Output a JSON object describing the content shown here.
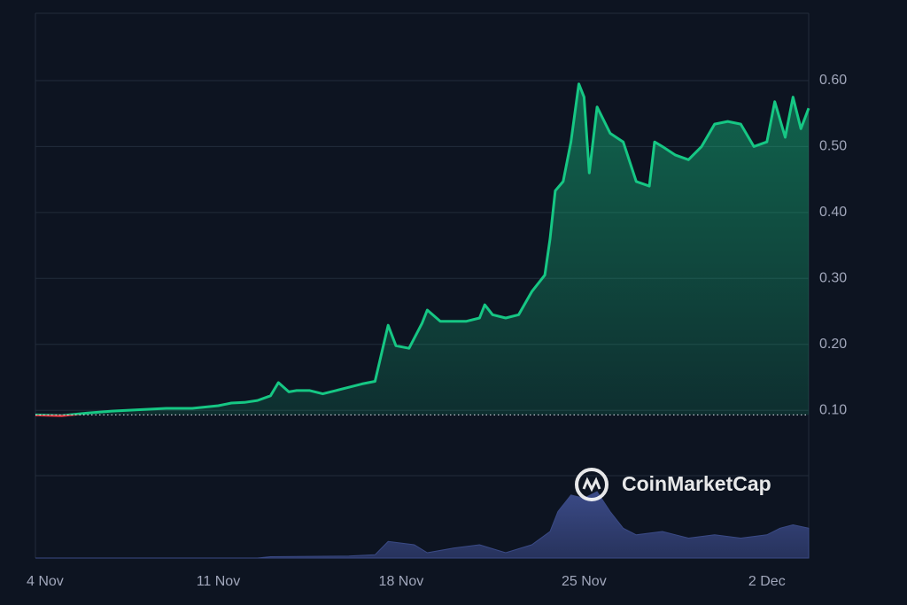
{
  "chart_data": {
    "type": "line",
    "watermark": "CoinMarketCap",
    "xlim": [
      0,
      29.6
    ],
    "xticks": [
      {
        "value": 0,
        "label": "4 Nov"
      },
      {
        "value": 7,
        "label": "11 Nov"
      },
      {
        "value": 14,
        "label": "18 Nov"
      },
      {
        "value": 21,
        "label": "25 Nov"
      },
      {
        "value": 28,
        "label": "2 Dec"
      }
    ],
    "ylim": [
      -0.124,
      0.702
    ],
    "yticks": [
      {
        "value": 0.1,
        "label": "0.10"
      },
      {
        "value": 0.2,
        "label": "0.20"
      },
      {
        "value": 0.3,
        "label": "0.30"
      },
      {
        "value": 0.4,
        "label": "0.40"
      },
      {
        "value": 0.5,
        "label": "0.50"
      },
      {
        "value": 0.6,
        "label": "0.60"
      }
    ],
    "y2lim": [
      0,
      100
    ],
    "grid": true,
    "baseline": 0.093,
    "below_color": "#ea3943",
    "series": [
      {
        "color": "#16c784",
        "x": [
          0,
          1,
          2,
          3,
          4,
          5,
          6,
          7,
          7.5,
          8,
          8.5,
          9,
          9.3,
          9.7,
          10,
          10.5,
          11,
          11.5,
          12,
          12.5,
          13,
          13.5,
          13.8,
          14.3,
          14.8,
          15,
          15.5,
          16,
          16.5,
          17,
          17.2,
          17.5,
          18,
          18.5,
          19,
          19.5,
          19.7,
          19.9,
          20.2,
          20.5,
          20.8,
          21,
          21.2,
          21.5,
          22,
          22.5,
          23,
          23.5,
          23.7,
          24,
          24.5,
          25,
          25.5,
          26,
          26.5,
          27,
          27.5,
          28,
          28.3,
          28.7,
          29,
          29.3,
          29.6
        ],
        "values": [
          0.093,
          0.092,
          0.096,
          0.099,
          0.101,
          0.103,
          0.103,
          0.107,
          0.111,
          0.112,
          0.115,
          0.122,
          0.142,
          0.128,
          0.13,
          0.13,
          0.125,
          0.13,
          0.135,
          0.14,
          0.144,
          0.229,
          0.198,
          0.194,
          0.232,
          0.252,
          0.235,
          0.235,
          0.235,
          0.24,
          0.26,
          0.245,
          0.24,
          0.245,
          0.28,
          0.305,
          0.36,
          0.433,
          0.447,
          0.507,
          0.595,
          0.575,
          0.46,
          0.56,
          0.52,
          0.507,
          0.447,
          0.44,
          0.507,
          0.5,
          0.487,
          0.48,
          0.5,
          0.534,
          0.538,
          0.534,
          0.5,
          0.507,
          0.568,
          0.514,
          0.575,
          0.527,
          0.558
        ]
      },
      {
        "color": "#3a4a85",
        "axis": "y2",
        "x": [
          0,
          8.5,
          9,
          12,
          13,
          13.5,
          14.5,
          15,
          16,
          17,
          18,
          19,
          19.7,
          20,
          20.5,
          21,
          21.5,
          22,
          22.5,
          23,
          24,
          25,
          26,
          27,
          28,
          28.5,
          29,
          29.6
        ],
        "values": [
          0,
          0,
          2,
          3,
          5,
          25,
          20,
          8,
          15,
          20,
          8,
          20,
          40,
          70,
          95,
          90,
          100,
          70,
          45,
          35,
          40,
          30,
          35,
          30,
          35,
          45,
          50,
          45
        ]
      }
    ]
  }
}
